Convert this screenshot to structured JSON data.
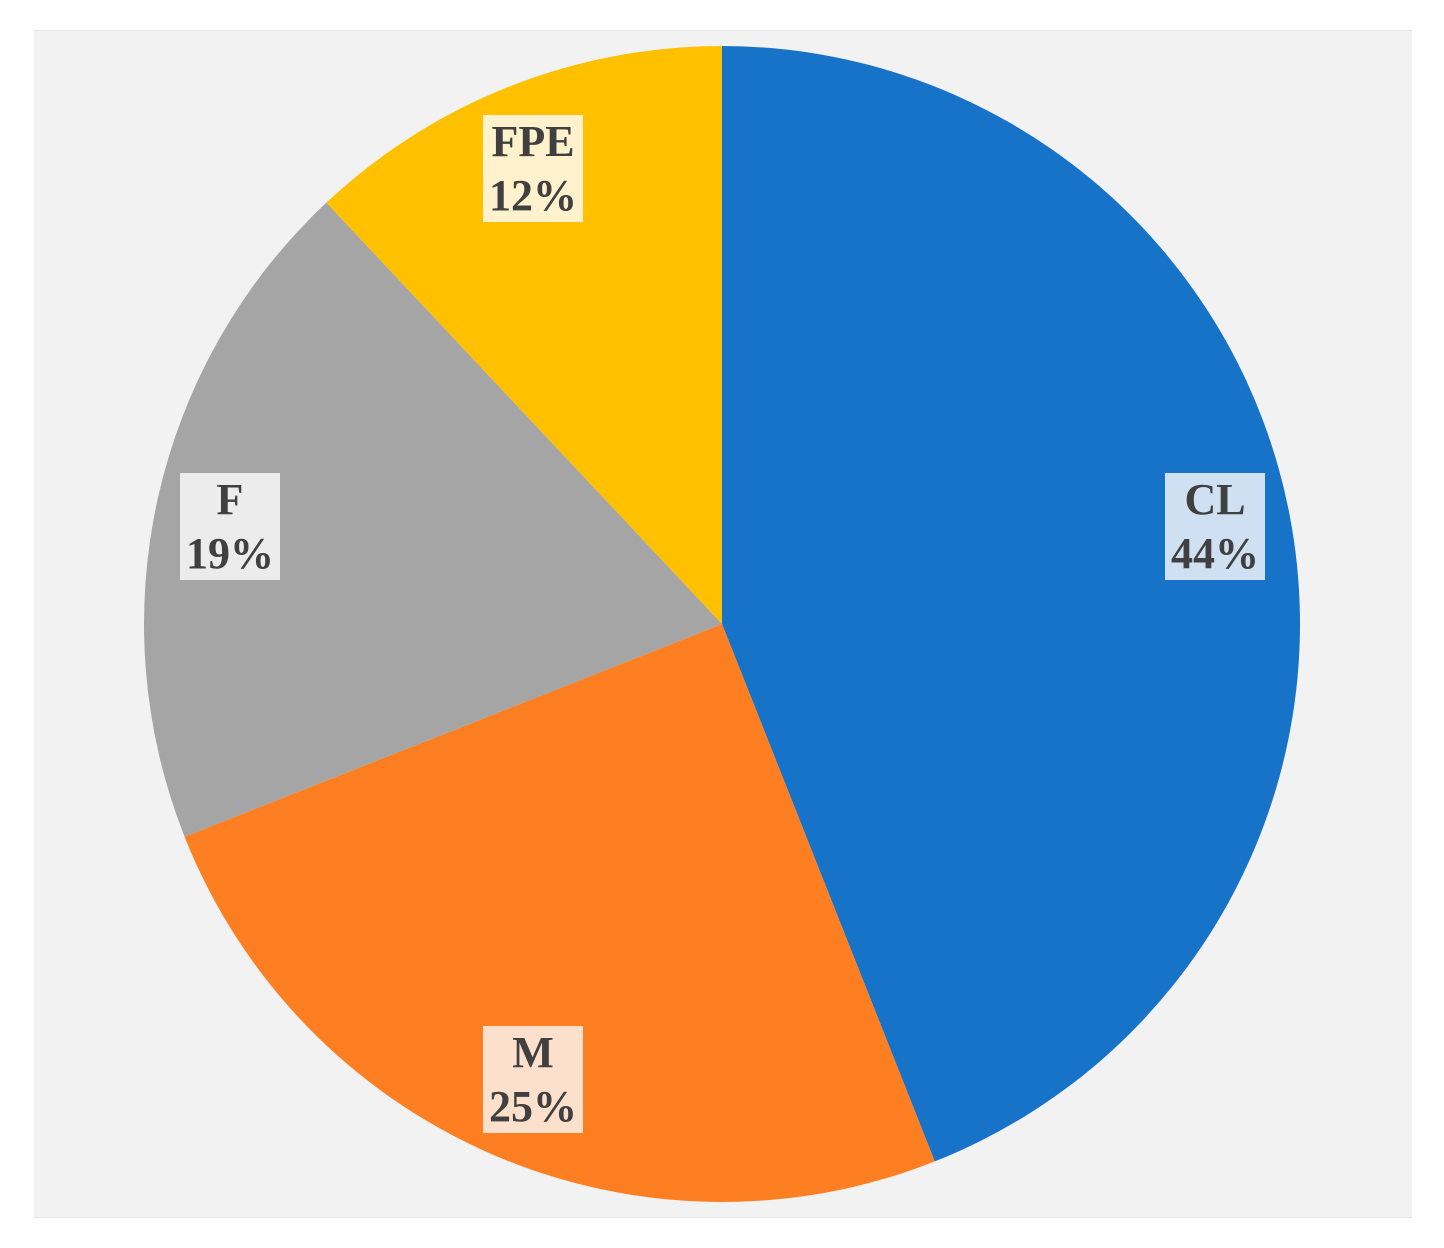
{
  "chart_data": {
    "type": "pie",
    "title": "",
    "slices": [
      {
        "label": "CL",
        "value": 44,
        "display": "44%",
        "color": "#1773c8",
        "label_bg": "#cfe0f3"
      },
      {
        "label": "M",
        "value": 25,
        "display": "25%",
        "color": "#fd7f22",
        "label_bg": "#fde0cc"
      },
      {
        "label": "F",
        "value": 19,
        "display": "19%",
        "color": "#a5a5a5",
        "label_bg": "#ececec"
      },
      {
        "label": "FPE",
        "value": 12,
        "display": "12%",
        "color": "#ffc000",
        "label_bg": "#fff2cc"
      }
    ],
    "start_angle": "top",
    "direction": "clockwise",
    "legend": "none",
    "data_labels": "category and percentage"
  }
}
